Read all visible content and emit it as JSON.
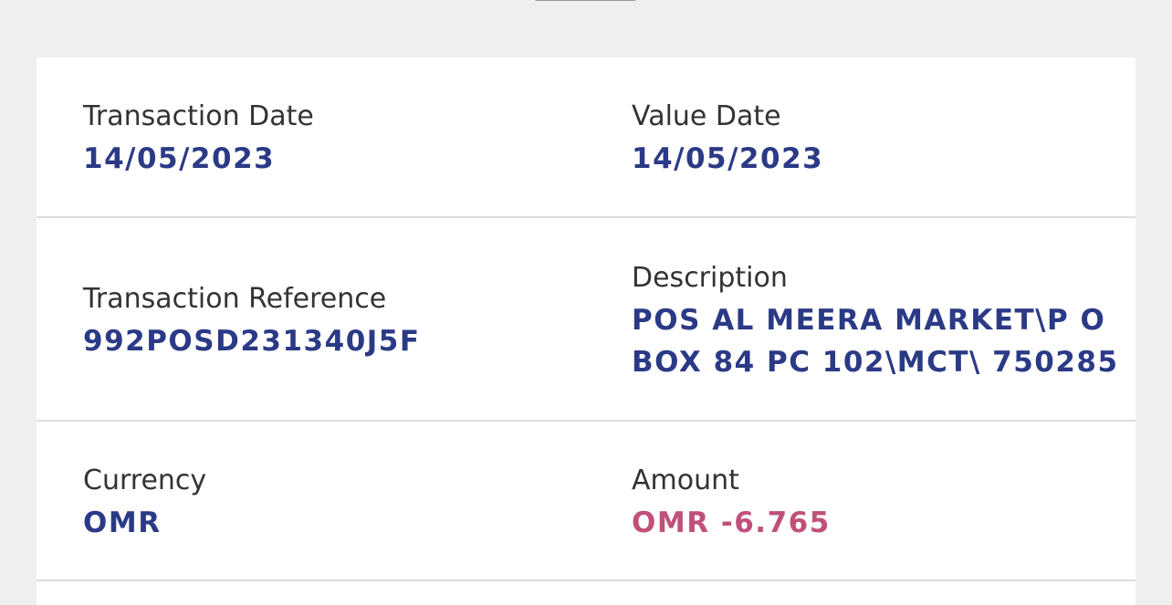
{
  "details": {
    "transaction_date": {
      "label": "Transaction Date",
      "value": "14/05/2023"
    },
    "value_date": {
      "label": "Value Date",
      "value": "14/05/2023"
    },
    "transaction_reference": {
      "label": "Transaction Reference",
      "value": "992POSD231340J5F"
    },
    "description": {
      "label": "Description",
      "value_line1": "POS AL MEERA MARKET\\P O",
      "value_line2": "BOX 84 PC 102\\MCT\\ 750285"
    },
    "currency": {
      "label": "Currency",
      "value": "OMR"
    },
    "amount": {
      "label": "Amount",
      "value": "OMR -6.765"
    }
  },
  "colors": {
    "value": "#2b3a86",
    "negative_amount": "#c0507a",
    "background": "#efefef"
  }
}
